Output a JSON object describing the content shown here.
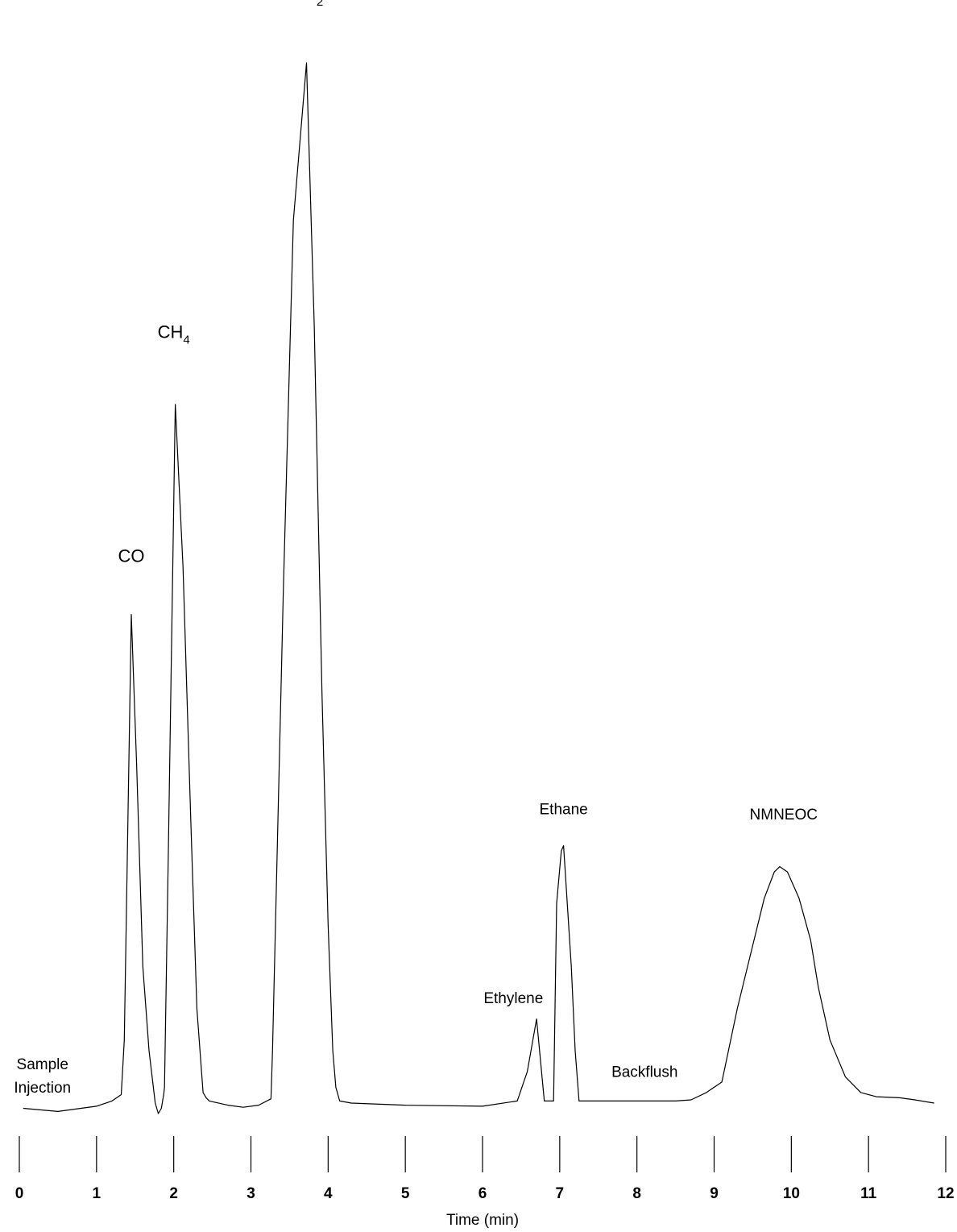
{
  "chart_data": {
    "type": "line",
    "title": "",
    "xlabel": "Time (min)",
    "ylabel": "",
    "xlim": [
      0,
      12
    ],
    "grid": false,
    "legend": "none",
    "x_ticks": [
      "0",
      "1",
      "2",
      "3",
      "4",
      "5",
      "6",
      "7",
      "8",
      "9",
      "10",
      "11",
      "12"
    ],
    "series": [
      {
        "x": [
          0.05,
          0.5,
          1.0,
          1.2,
          1.32,
          1.36,
          1.45,
          1.52,
          1.6,
          1.68,
          1.76,
          1.8,
          1.84,
          1.87,
          1.88,
          1.93,
          2.02,
          2.12,
          2.22,
          2.3,
          2.38,
          2.42,
          2.46,
          2.7,
          2.9,
          3.1,
          3.26,
          3.28,
          3.42,
          3.55,
          3.72,
          3.82,
          3.92,
          4.0,
          4.06,
          4.1,
          4.15,
          4.3,
          5.0,
          6.0,
          6.45,
          6.58,
          6.7,
          6.8,
          6.82,
          6.92,
          6.96,
          7.02,
          7.05,
          7.15,
          7.2,
          7.25,
          7.3,
          8.0,
          8.5,
          8.7,
          8.9,
          9.1,
          9.3,
          9.5,
          9.65,
          9.78,
          9.85,
          9.95,
          10.1,
          10.25,
          10.35,
          10.5,
          10.7,
          10.9,
          11.1,
          11.4,
          11.6,
          11.85
        ],
        "y": [
          0.5,
          0.2,
          0.7,
          1.2,
          1.8,
          7,
          47.5,
          33,
          14,
          6,
          1,
          0,
          0.5,
          1.8,
          2.5,
          25,
          67.5,
          52,
          28,
          10,
          2,
          1.5,
          1.2,
          0.8,
          0.6,
          0.8,
          1.4,
          6,
          50,
          85,
          100,
          75,
          40,
          18,
          6,
          2.5,
          1.2,
          1.0,
          0.8,
          0.7,
          1.2,
          4,
          9,
          1.2,
          1.2,
          1.2,
          20,
          25,
          25.5,
          14,
          6,
          1.2,
          1.2,
          1.2,
          1.2,
          1.3,
          2,
          3,
          10,
          16,
          20.5,
          23,
          23.5,
          23,
          20.5,
          16.5,
          12,
          7,
          3.5,
          2,
          1.6,
          1.5,
          1.3,
          1.0
        ]
      }
    ],
    "annotations": [
      {
        "text": "Sample",
        "x": 0.3,
        "y": 4.2
      },
      {
        "text": "Injection",
        "x": 0.3,
        "y": 2.0
      },
      {
        "text": "CO",
        "x": 1.45,
        "y": 52.5
      },
      {
        "text": "CH",
        "sub": "4",
        "x": 2.0,
        "y": 73.8
      },
      {
        "text": "CO",
        "sub": "2",
        "x": 3.72,
        "y": 106
      },
      {
        "text": "Ethylene",
        "x": 6.4,
        "y": 10.5
      },
      {
        "text": "Ethane",
        "x": 7.05,
        "y": 28.5
      },
      {
        "text": "Backflush",
        "x": 8.1,
        "y": 3.5
      },
      {
        "text": "NMNEOC",
        "x": 9.9,
        "y": 28.0
      }
    ]
  }
}
